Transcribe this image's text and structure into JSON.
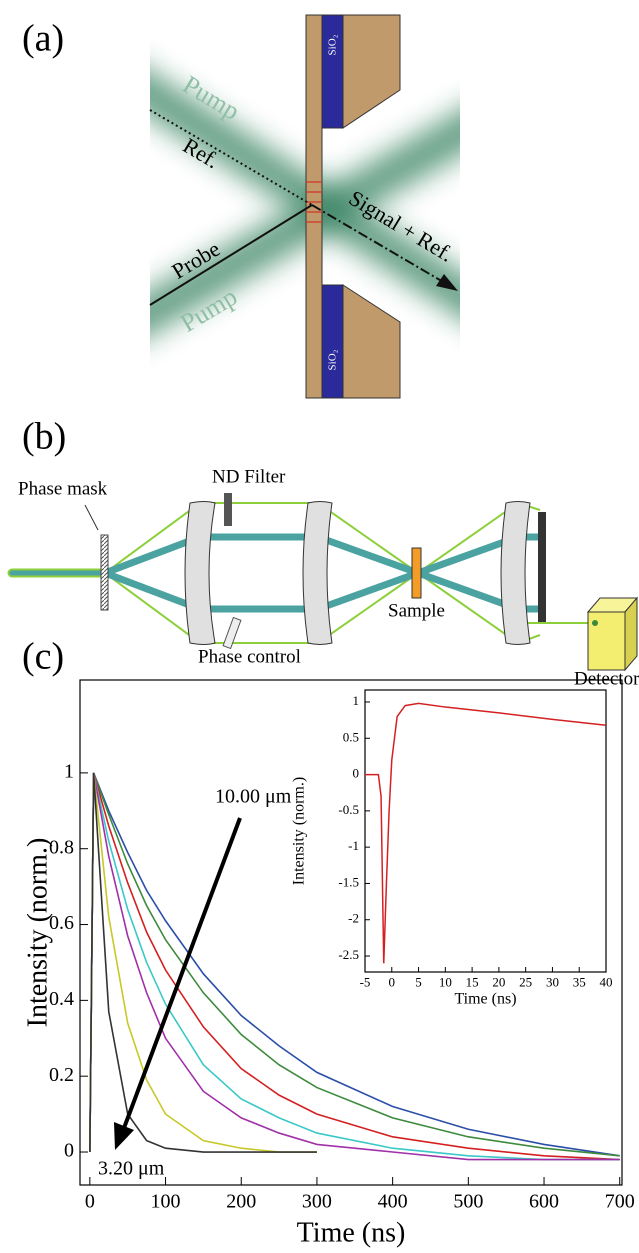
{
  "panel_a": {
    "label": "(a)",
    "sio2_top": "SiO₂",
    "sio2_bottom": "SiO₂",
    "pump_top": "Pump",
    "ref": "Ref.",
    "signal": "Signal + Ref.",
    "probe": "Probe",
    "pump_bottom": "Pump"
  },
  "panel_b": {
    "label": "(b)",
    "phase_mask": "Phase mask",
    "nd_filter": "ND Filter",
    "sample": "Sample",
    "phase_control": "Phase control",
    "detector": "Detector"
  },
  "panel_c": {
    "label": "(c)"
  },
  "chart_data": [
    {
      "type": "line",
      "xlabel": "Time (ns)",
      "ylabel": "Intensity (norm.)",
      "annotations": [
        "10.00 μm",
        "3.20 μm"
      ],
      "x": [
        0,
        5,
        25,
        50,
        75,
        100,
        150,
        200,
        250,
        300,
        400,
        500,
        600,
        700
      ],
      "xlim": [
        -13,
        703
      ],
      "ylim": [
        -0.087,
        1.245
      ],
      "xticks": [
        0,
        100,
        200,
        300,
        400,
        500,
        600,
        700
      ],
      "yticks": [
        0,
        0.2,
        0.4,
        0.6,
        0.8,
        1
      ],
      "series": [
        {
          "color": "#2b4fa8",
          "values": [
            0,
            1,
            0.9,
            0.79,
            0.69,
            0.61,
            0.47,
            0.36,
            0.28,
            0.21,
            0.12,
            0.06,
            0.02,
            -0.01
          ]
        },
        {
          "color": "#3d8a3d",
          "values": [
            0,
            1,
            0.89,
            0.76,
            0.65,
            0.56,
            0.42,
            0.31,
            0.23,
            0.17,
            0.09,
            0.04,
            0.01,
            -0.01
          ]
        },
        {
          "color": "#d42020",
          "values": [
            0,
            1,
            0.86,
            0.71,
            0.58,
            0.48,
            0.33,
            0.22,
            0.15,
            0.1,
            0.04,
            0.01,
            -0.01,
            -0.02
          ]
        },
        {
          "color": "#3cc8c8",
          "values": [
            0,
            1,
            0.82,
            0.64,
            0.5,
            0.39,
            0.23,
            0.14,
            0.09,
            0.05,
            0.01,
            -0.01,
            -0.02,
            -0.02
          ]
        },
        {
          "color": "#a030a8",
          "values": [
            0,
            1,
            0.78,
            0.57,
            0.42,
            0.3,
            0.16,
            0.09,
            0.05,
            0.02,
            0,
            -0.02,
            -0.02,
            -0.02
          ]
        },
        {
          "color": "#c8c828",
          "values": [
            0,
            1,
            0.62,
            0.34,
            0.19,
            0.1,
            0.03,
            0.01,
            0,
            0,
            null,
            null,
            null,
            null
          ]
        },
        {
          "color": "#333333",
          "values": [
            0,
            1,
            0.37,
            0.1,
            0.03,
            0.01,
            0,
            0,
            0,
            0,
            null,
            null,
            null,
            null
          ]
        }
      ]
    },
    {
      "type": "line",
      "xlabel": "Time (ns)",
      "ylabel": "Intensity (norm.)",
      "x": [
        -5,
        -2.5,
        -2,
        -1.5,
        -1,
        -0.5,
        0,
        1,
        2.5,
        5,
        10,
        20,
        30,
        40
      ],
      "xlim": [
        -5,
        40
      ],
      "ylim": [
        -2.72,
        1.165
      ],
      "xticks": [
        -5,
        0,
        5,
        10,
        15,
        20,
        25,
        30,
        35,
        40
      ],
      "yticks": [
        1,
        0.5,
        0,
        -0.5,
        -1,
        -1.5,
        -2,
        -2.5
      ],
      "series": [
        {
          "color": "#d42020",
          "values": [
            0,
            0,
            -0.3,
            -2.6,
            -1.5,
            -0.5,
            0.2,
            0.8,
            0.95,
            0.98,
            0.93,
            0.85,
            0.76,
            0.68
          ]
        }
      ]
    }
  ]
}
